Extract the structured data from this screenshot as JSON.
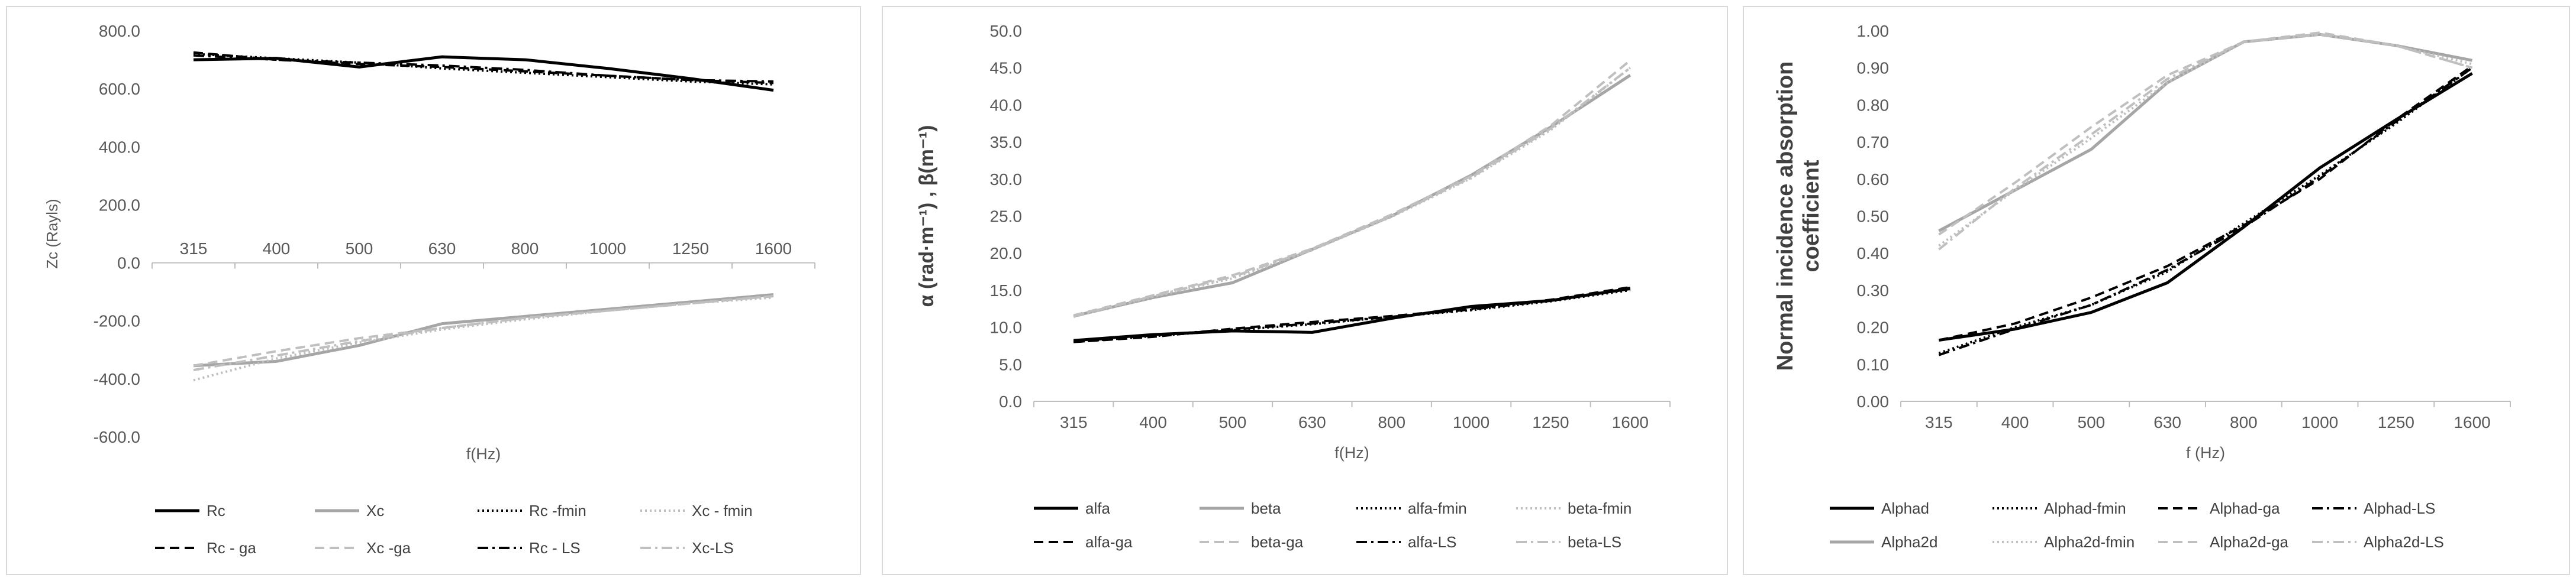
{
  "chart_data": [
    {
      "type": "line",
      "title": "",
      "xlabel": "f(Hz)",
      "ylabel": "Zc (Rayls)",
      "categories": [
        "315",
        "400",
        "500",
        "630",
        "800",
        "1000",
        "1250",
        "1600"
      ],
      "ylim": [
        -600,
        800
      ],
      "yticks": [
        "-600.0",
        "-400.0",
        "-200.0",
        "0.0",
        "200.0",
        "400.0",
        "600.0",
        "800.0"
      ],
      "grid": false,
      "legend_position": "bottom",
      "series": [
        {
          "name": "Rc",
          "color": "#000000",
          "dash": "solid",
          "values": [
            700,
            705,
            675,
            710,
            700,
            670,
            635,
            595
          ]
        },
        {
          "name": "Xc",
          "color": "#a6a6a6",
          "dash": "solid",
          "values": [
            -355,
            -340,
            -285,
            -210,
            -185,
            -160,
            -135,
            -110
          ]
        },
        {
          "name": "Rc -fmin",
          "color": "#000000",
          "dash": "dot",
          "values": [
            720,
            705,
            690,
            670,
            655,
            640,
            625,
            615
          ]
        },
        {
          "name": "Xc - fmin",
          "color": "#bfbfbf",
          "dash": "dot",
          "values": [
            -405,
            -330,
            -275,
            -230,
            -195,
            -165,
            -140,
            -120
          ]
        },
        {
          "name": "Rc - ga",
          "color": "#000000",
          "dash": "dash",
          "values": [
            725,
            700,
            685,
            675,
            660,
            645,
            630,
            620
          ]
        },
        {
          "name": "Xc -ga",
          "color": "#bfbfbf",
          "dash": "dash",
          "values": [
            -355,
            -305,
            -260,
            -225,
            -190,
            -165,
            -140,
            -115
          ]
        },
        {
          "name": "Rc - LS",
          "color": "#000000",
          "dash": "dashdot",
          "values": [
            715,
            700,
            690,
            680,
            665,
            645,
            630,
            625
          ]
        },
        {
          "name": "Xc-LS",
          "color": "#bfbfbf",
          "dash": "dashdot",
          "values": [
            -370,
            -320,
            -270,
            -225,
            -190,
            -165,
            -140,
            -115
          ]
        }
      ]
    },
    {
      "type": "line",
      "title": "",
      "xlabel": "f(Hz)",
      "ylabel": "α (rad·m⁻¹) , β(m⁻¹)",
      "categories": [
        "315",
        "400",
        "500",
        "630",
        "800",
        "1000",
        "1250",
        "1600"
      ],
      "ylim": [
        0,
        50
      ],
      "yticks": [
        "0.0",
        "5.0",
        "10.0",
        "15.0",
        "20.0",
        "25.0",
        "30.0",
        "35.0",
        "40.0",
        "45.0",
        "50.0"
      ],
      "grid": false,
      "legend_position": "bottom",
      "series": [
        {
          "name": "alfa",
          "color": "#000000",
          "dash": "solid",
          "values": [
            8.2,
            9.0,
            9.5,
            9.3,
            11.2,
            12.8,
            13.6,
            15.2
          ]
        },
        {
          "name": "beta",
          "color": "#a6a6a6",
          "dash": "solid",
          "values": [
            11.5,
            14.0,
            16.0,
            20.5,
            25.0,
            30.5,
            37.0,
            44.0
          ]
        },
        {
          "name": "alfa-fmin",
          "color": "#000000",
          "dash": "dot",
          "values": [
            8.0,
            8.8,
            9.6,
            10.4,
            11.4,
            12.3,
            13.5,
            15.0
          ]
        },
        {
          "name": "beta-fmin",
          "color": "#bfbfbf",
          "dash": "dot",
          "values": [
            11.4,
            14.1,
            16.6,
            20.4,
            24.9,
            30.1,
            36.6,
            45.0
          ]
        },
        {
          "name": "alfa-ga",
          "color": "#000000",
          "dash": "dash",
          "values": [
            8.0,
            8.7,
            9.8,
            10.7,
            11.5,
            12.5,
            13.7,
            15.4
          ]
        },
        {
          "name": "beta-ga",
          "color": "#bfbfbf",
          "dash": "dash",
          "values": [
            11.6,
            14.3,
            17.0,
            20.6,
            25.2,
            30.4,
            37.2,
            46.0
          ]
        },
        {
          "name": "alfa-LS",
          "color": "#000000",
          "dash": "dashdot",
          "values": [
            8.1,
            8.9,
            9.7,
            10.5,
            11.4,
            12.4,
            13.6,
            15.3
          ]
        },
        {
          "name": "beta-LS",
          "color": "#bfbfbf",
          "dash": "dashdot",
          "values": [
            11.5,
            14.2,
            16.8,
            20.5,
            25.0,
            30.2,
            36.8,
            45.0
          ]
        }
      ]
    },
    {
      "type": "line",
      "title": "",
      "xlabel": "f (Hz)",
      "ylabel": "Normal incidence absorption coefficient",
      "categories": [
        "315",
        "400",
        "500",
        "630",
        "800",
        "1000",
        "1250",
        "1600"
      ],
      "ylim": [
        0,
        1
      ],
      "yticks": [
        "0.00",
        "0.10",
        "0.20",
        "0.30",
        "0.40",
        "0.50",
        "0.60",
        "0.70",
        "0.80",
        "0.90",
        "1.00"
      ],
      "grid": false,
      "legend_position": "bottom",
      "series": [
        {
          "name": "Alphad",
          "color": "#000000",
          "dash": "solid",
          "values": [
            0.165,
            0.195,
            0.24,
            0.32,
            0.47,
            0.63,
            0.76,
            0.885
          ]
        },
        {
          "name": "Alphad-fmin",
          "color": "#000000",
          "dash": "dot",
          "values": [
            0.13,
            0.2,
            0.26,
            0.35,
            0.48,
            0.61,
            0.75,
            0.9
          ]
        },
        {
          "name": "Alphad-ga",
          "color": "#000000",
          "dash": "dash",
          "values": [
            0.165,
            0.21,
            0.28,
            0.365,
            0.475,
            0.6,
            0.76,
            0.905
          ]
        },
        {
          "name": "Alphad-LS",
          "color": "#000000",
          "dash": "dashdot",
          "values": [
            0.125,
            0.195,
            0.26,
            0.355,
            0.47,
            0.605,
            0.755,
            0.9
          ]
        },
        {
          "name": "Alpha2d",
          "color": "#a6a6a6",
          "dash": "solid",
          "values": [
            0.46,
            0.57,
            0.68,
            0.86,
            0.97,
            0.99,
            0.96,
            0.92
          ]
        },
        {
          "name": "Alpha2d-fmin",
          "color": "#bfbfbf",
          "dash": "dot",
          "values": [
            0.42,
            0.57,
            0.71,
            0.86,
            0.97,
            0.99,
            0.96,
            0.91
          ]
        },
        {
          "name": "Alpha2d-ga",
          "color": "#bfbfbf",
          "dash": "dash",
          "values": [
            0.45,
            0.59,
            0.74,
            0.88,
            0.97,
            0.995,
            0.96,
            0.9
          ]
        },
        {
          "name": "Alpha2d-LS",
          "color": "#bfbfbf",
          "dash": "dashdot",
          "values": [
            0.41,
            0.575,
            0.72,
            0.87,
            0.97,
            0.99,
            0.96,
            0.9
          ]
        }
      ]
    }
  ]
}
